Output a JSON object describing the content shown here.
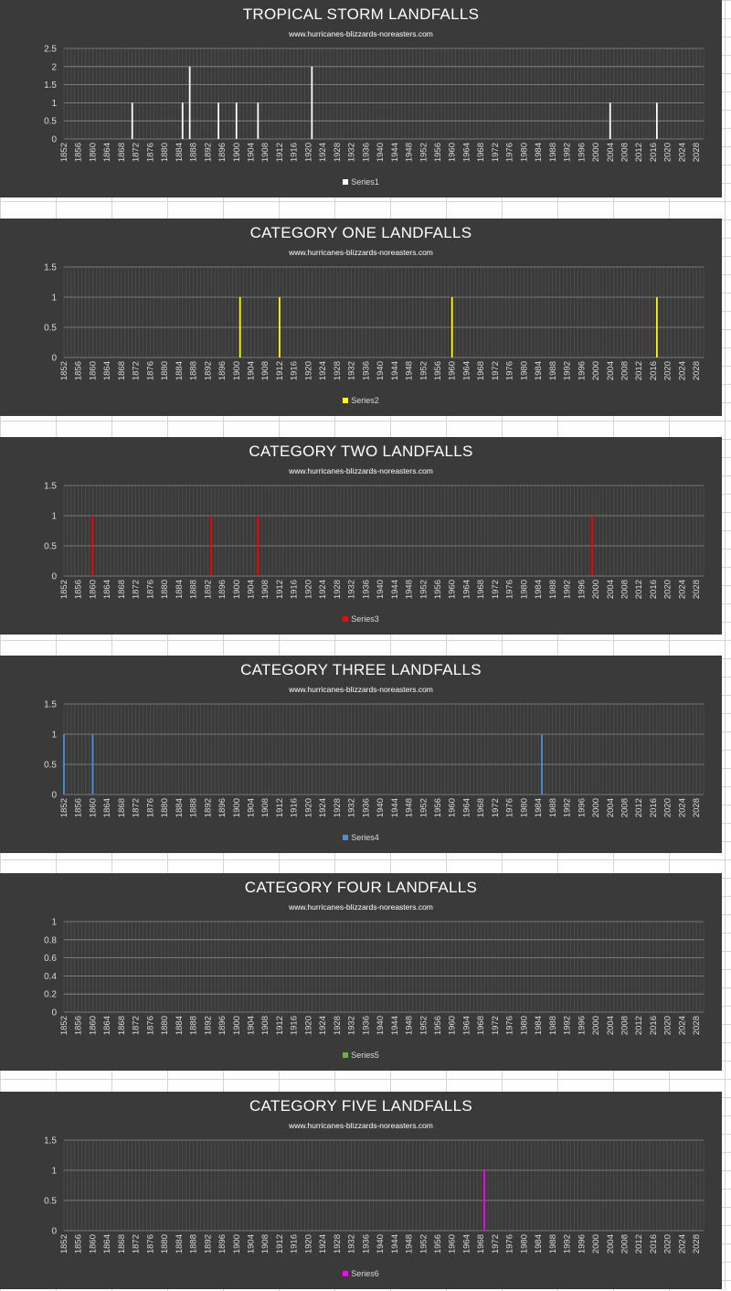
{
  "chart_data": [
    {
      "type": "bar",
      "title": "TROPICAL STORM LANDFALLS",
      "subtitle": "www.hurricanes-blizzards-noreasters.com",
      "x_range": [
        1852,
        2030
      ],
      "x_ticks": [
        "1852",
        "1856",
        "1860",
        "1864",
        "1868",
        "1872",
        "1876",
        "1880",
        "1884",
        "1888",
        "1892",
        "1896",
        "1900",
        "1904",
        "1908",
        "1912",
        "1916",
        "1920",
        "1924",
        "1928",
        "1932",
        "1936",
        "1940",
        "1944",
        "1948",
        "1952",
        "1956",
        "1960",
        "1964",
        "1968",
        "1972",
        "1976",
        "1980",
        "1984",
        "1988",
        "1992",
        "1996",
        "2000",
        "2004",
        "2008",
        "2012",
        "2016",
        "2020",
        "2024",
        "2028"
      ],
      "y_ticks": [
        "0",
        "0.5",
        "1",
        "1.5",
        "2",
        "2.5"
      ],
      "ylim": [
        0,
        2.5
      ],
      "grid": true,
      "legend_position": "bottom",
      "series": [
        {
          "name": "Series1",
          "color": "#ffffff",
          "x": [
            1871,
            1885,
            1887,
            1895,
            1900,
            1906,
            1921,
            2004,
            2017
          ],
          "values": [
            1,
            1,
            2,
            1,
            1,
            1,
            2,
            1,
            1
          ]
        }
      ]
    },
    {
      "type": "bar",
      "title": "CATEGORY ONE LANDFALLS",
      "subtitle": "www.hurricanes-blizzards-noreasters.com",
      "x_range": [
        1852,
        2030
      ],
      "x_ticks": [
        "1852",
        "1856",
        "1860",
        "1864",
        "1868",
        "1872",
        "1876",
        "1880",
        "1884",
        "1888",
        "1892",
        "1896",
        "1900",
        "1904",
        "1908",
        "1912",
        "1916",
        "1920",
        "1924",
        "1928",
        "1932",
        "1936",
        "1940",
        "1944",
        "1948",
        "1952",
        "1956",
        "1960",
        "1964",
        "1968",
        "1972",
        "1976",
        "1980",
        "1984",
        "1988",
        "1992",
        "1996",
        "2000",
        "2004",
        "2008",
        "2012",
        "2016",
        "2020",
        "2024",
        "2028"
      ],
      "y_ticks": [
        "0",
        "0.5",
        "1",
        "1.5"
      ],
      "ylim": [
        0,
        1.5
      ],
      "grid": true,
      "legend_position": "bottom",
      "series": [
        {
          "name": "Series2",
          "color": "#ffff00",
          "x": [
            1901,
            1912,
            1960,
            2017
          ],
          "values": [
            1,
            1,
            1,
            1
          ]
        }
      ]
    },
    {
      "type": "bar",
      "title": "CATEGORY TWO LANDFALLS",
      "subtitle": "www.hurricanes-blizzards-noreasters.com",
      "x_range": [
        1852,
        2030
      ],
      "x_ticks": [
        "1852",
        "1856",
        "1860",
        "1864",
        "1868",
        "1872",
        "1876",
        "1880",
        "1884",
        "1888",
        "1892",
        "1896",
        "1900",
        "1904",
        "1908",
        "1912",
        "1916",
        "1920",
        "1924",
        "1928",
        "1932",
        "1936",
        "1940",
        "1944",
        "1948",
        "1952",
        "1956",
        "1960",
        "1964",
        "1968",
        "1972",
        "1976",
        "1980",
        "1984",
        "1988",
        "1992",
        "1996",
        "2000",
        "2004",
        "2008",
        "2012",
        "2016",
        "2020",
        "2024",
        "2028"
      ],
      "y_ticks": [
        "0",
        "0.5",
        "1",
        "1.5"
      ],
      "ylim": [
        0,
        1.5
      ],
      "grid": true,
      "legend_position": "bottom",
      "series": [
        {
          "name": "Series3",
          "color": "#ff0000",
          "x": [
            1860,
            1893,
            1906,
            1999
          ],
          "values": [
            1,
            1,
            1,
            1
          ]
        }
      ]
    },
    {
      "type": "bar",
      "title": "CATEGORY THREE LANDFALLS",
      "subtitle": "www.hurricanes-blizzards-noreasters.com",
      "x_range": [
        1852,
        2030
      ],
      "x_ticks": [
        "1852",
        "1856",
        "1860",
        "1864",
        "1868",
        "1872",
        "1876",
        "1880",
        "1884",
        "1888",
        "1892",
        "1896",
        "1900",
        "1904",
        "1908",
        "1912",
        "1916",
        "1920",
        "1924",
        "1928",
        "1932",
        "1936",
        "1940",
        "1944",
        "1948",
        "1952",
        "1956",
        "1960",
        "1964",
        "1968",
        "1972",
        "1976",
        "1980",
        "1984",
        "1988",
        "1992",
        "1996",
        "2000",
        "2004",
        "2008",
        "2012",
        "2016",
        "2020",
        "2024",
        "2028"
      ],
      "y_ticks": [
        "0",
        "0.5",
        "1",
        "1.5"
      ],
      "ylim": [
        0,
        1.5
      ],
      "grid": true,
      "legend_position": "bottom",
      "series": [
        {
          "name": "Series4",
          "color": "#4f8fd8",
          "x": [
            1852,
            1860,
            1985
          ],
          "values": [
            1,
            1,
            1
          ]
        }
      ]
    },
    {
      "type": "bar",
      "title": "CATEGORY FOUR LANDFALLS",
      "subtitle": "www.hurricanes-blizzards-noreasters.com",
      "x_range": [
        1852,
        2030
      ],
      "x_ticks": [
        "1852",
        "1856",
        "1860",
        "1864",
        "1868",
        "1872",
        "1876",
        "1880",
        "1884",
        "1888",
        "1892",
        "1896",
        "1900",
        "1904",
        "1908",
        "1912",
        "1916",
        "1920",
        "1924",
        "1928",
        "1932",
        "1936",
        "1940",
        "1944",
        "1948",
        "1952",
        "1956",
        "1960",
        "1964",
        "1968",
        "1972",
        "1976",
        "1980",
        "1984",
        "1988",
        "1992",
        "1996",
        "2000",
        "2004",
        "2008",
        "2012",
        "2016",
        "2020",
        "2024",
        "2028"
      ],
      "y_ticks": [
        "0",
        "0.2",
        "0.4",
        "0.6",
        "0.8",
        "1"
      ],
      "ylim": [
        0,
        1
      ],
      "grid": true,
      "legend_position": "bottom",
      "series": [
        {
          "name": "Series5",
          "color": "#70ad47",
          "x": [],
          "values": []
        }
      ]
    },
    {
      "type": "bar",
      "title": "CATEGORY FIVE LANDFALLS",
      "subtitle": "www.hurricanes-blizzards-noreasters.com",
      "x_range": [
        1852,
        2030
      ],
      "x_ticks": [
        "1852",
        "1856",
        "1860",
        "1864",
        "1868",
        "1872",
        "1876",
        "1880",
        "1884",
        "1888",
        "1892",
        "1896",
        "1900",
        "1904",
        "1908",
        "1912",
        "1916",
        "1920",
        "1924",
        "1928",
        "1932",
        "1936",
        "1940",
        "1944",
        "1948",
        "1952",
        "1956",
        "1960",
        "1964",
        "1968",
        "1972",
        "1976",
        "1980",
        "1984",
        "1988",
        "1992",
        "1996",
        "2000",
        "2004",
        "2008",
        "2012",
        "2016",
        "2020",
        "2024",
        "2028"
      ],
      "y_ticks": [
        "0",
        "0.5",
        "1",
        "1.5"
      ],
      "ylim": [
        0,
        1.5
      ],
      "grid": true,
      "legend_position": "bottom",
      "series": [
        {
          "name": "Series6",
          "color": "#ff00ff",
          "x": [
            1969
          ],
          "values": [
            1
          ]
        }
      ]
    }
  ]
}
